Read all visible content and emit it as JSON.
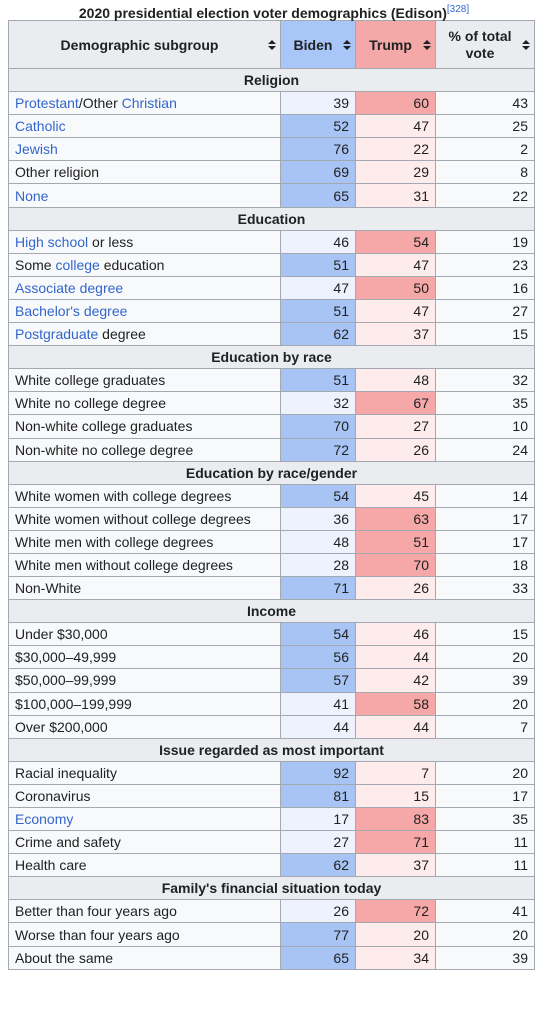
{
  "caption": {
    "title": "2020 presidential election voter demographics (Edison)",
    "ref": "[328]"
  },
  "table": {
    "columns": [
      "Demographic subgroup",
      "Biden",
      "Trump",
      "% of total vote"
    ],
    "sections": [
      {
        "title": "Religion",
        "rows": [
          {
            "label": [
              {
                "text": "Protestant",
                "link": true
              },
              {
                "text": "/Other "
              },
              {
                "text": "Christian",
                "link": true
              }
            ],
            "biden": 39,
            "trump": 60,
            "total": 43
          },
          {
            "label": [
              {
                "text": "Catholic",
                "link": true
              }
            ],
            "biden": 52,
            "trump": 47,
            "total": 25
          },
          {
            "label": [
              {
                "text": "Jewish",
                "link": true
              }
            ],
            "biden": 76,
            "trump": 22,
            "total": 2
          },
          {
            "label": "Other religion",
            "biden": 69,
            "trump": 29,
            "total": 8
          },
          {
            "label": [
              {
                "text": "None",
                "link": true
              }
            ],
            "biden": 65,
            "trump": 31,
            "total": 22
          }
        ]
      },
      {
        "title": "Education",
        "rows": [
          {
            "label": [
              {
                "text": "High school",
                "link": true
              },
              {
                "text": " or less"
              }
            ],
            "biden": 46,
            "trump": 54,
            "total": 19
          },
          {
            "label": [
              {
                "text": "Some "
              },
              {
                "text": "college",
                "link": true
              },
              {
                "text": " education"
              }
            ],
            "biden": 51,
            "trump": 47,
            "total": 23
          },
          {
            "label": [
              {
                "text": "Associate degree",
                "link": true
              }
            ],
            "biden": 47,
            "trump": 50,
            "total": 16
          },
          {
            "label": [
              {
                "text": "Bachelor's degree",
                "link": true
              }
            ],
            "biden": 51,
            "trump": 47,
            "total": 27
          },
          {
            "label": [
              {
                "text": "Postgraduate",
                "link": true
              },
              {
                "text": " degree"
              }
            ],
            "biden": 62,
            "trump": 37,
            "total": 15
          }
        ]
      },
      {
        "title": "Education by race",
        "rows": [
          {
            "label": "White college graduates",
            "biden": 51,
            "trump": 48,
            "total": 32
          },
          {
            "label": "White no college degree",
            "biden": 32,
            "trump": 67,
            "total": 35
          },
          {
            "label": "Non-white college graduates",
            "biden": 70,
            "trump": 27,
            "total": 10
          },
          {
            "label": "Non-white no college degree",
            "biden": 72,
            "trump": 26,
            "total": 24
          }
        ]
      },
      {
        "title": "Education by race/gender",
        "rows": [
          {
            "label": "White women with college degrees",
            "biden": 54,
            "trump": 45,
            "total": 14
          },
          {
            "label": "White women without college degrees",
            "biden": 36,
            "trump": 63,
            "total": 17
          },
          {
            "label": "White men with college degrees",
            "biden": 48,
            "trump": 51,
            "total": 17
          },
          {
            "label": "White men without college degrees",
            "biden": 28,
            "trump": 70,
            "total": 18
          },
          {
            "label": "Non-White",
            "biden": 71,
            "trump": 26,
            "total": 33
          }
        ]
      },
      {
        "title": "Income",
        "rows": [
          {
            "label": "Under $30,000",
            "biden": 54,
            "trump": 46,
            "total": 15
          },
          {
            "label": "$30,000–49,999",
            "biden": 56,
            "trump": 44,
            "total": 20
          },
          {
            "label": "$50,000–99,999",
            "biden": 57,
            "trump": 42,
            "total": 39
          },
          {
            "label": "$100,000–199,999",
            "biden": 41,
            "trump": 58,
            "total": 20
          },
          {
            "label": "Over $200,000",
            "biden": 44,
            "trump": 44,
            "total": 7
          }
        ]
      },
      {
        "title": "Issue regarded as most important",
        "rows": [
          {
            "label": "Racial inequality",
            "biden": 92,
            "trump": 7,
            "total": 20
          },
          {
            "label": "Coronavirus",
            "biden": 81,
            "trump": 15,
            "total": 17
          },
          {
            "label": [
              {
                "text": "Economy",
                "link": true
              }
            ],
            "biden": 17,
            "trump": 83,
            "total": 35
          },
          {
            "label": "Crime and safety",
            "biden": 27,
            "trump": 71,
            "total": 11
          },
          {
            "label": "Health care",
            "biden": 62,
            "trump": 37,
            "total": 11
          }
        ]
      },
      {
        "title": "Family's financial situation today",
        "rows": [
          {
            "label": "Better than four years ago",
            "biden": 26,
            "trump": 72,
            "total": 41
          },
          {
            "label": "Worse than four years ago",
            "biden": 77,
            "trump": 20,
            "total": 20
          },
          {
            "label": "About the same",
            "biden": 65,
            "trump": 34,
            "total": 39
          }
        ]
      }
    ]
  }
}
